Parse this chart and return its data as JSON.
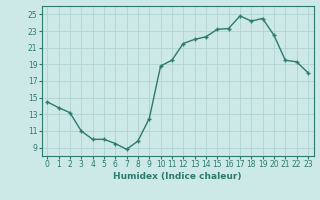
{
  "x": [
    0,
    1,
    2,
    3,
    4,
    5,
    6,
    7,
    8,
    9,
    10,
    11,
    12,
    13,
    14,
    15,
    16,
    17,
    18,
    19,
    20,
    21,
    22,
    23
  ],
  "y": [
    14.5,
    13.8,
    13.2,
    11.0,
    10.0,
    10.0,
    9.5,
    8.8,
    9.8,
    12.5,
    18.8,
    19.5,
    21.5,
    22.0,
    22.3,
    23.2,
    23.3,
    24.8,
    24.2,
    24.5,
    22.5,
    19.5,
    19.3,
    18.0
  ],
  "line_color": "#2d7a6e",
  "marker": "+",
  "marker_size": 3,
  "bg_color": "#cce9e7",
  "grid_color": "#b0d4d2",
  "xlabel": "Humidex (Indice chaleur)",
  "xlim": [
    -0.5,
    23.5
  ],
  "ylim": [
    8,
    26
  ],
  "yticks": [
    9,
    11,
    13,
    15,
    17,
    19,
    21,
    23,
    25
  ],
  "ytick_labels": [
    "9",
    "11",
    "13",
    "15",
    "17",
    "19",
    "21",
    "23",
    "25"
  ],
  "xticks": [
    0,
    1,
    2,
    3,
    4,
    5,
    6,
    7,
    8,
    9,
    10,
    11,
    12,
    13,
    14,
    15,
    16,
    17,
    18,
    19,
    20,
    21,
    22,
    23
  ],
  "tick_fontsize": 5.5,
  "xlabel_fontsize": 6.5,
  "line_width": 1.0,
  "spine_color": "#2d7a6e",
  "text_color": "#2d7a6e"
}
